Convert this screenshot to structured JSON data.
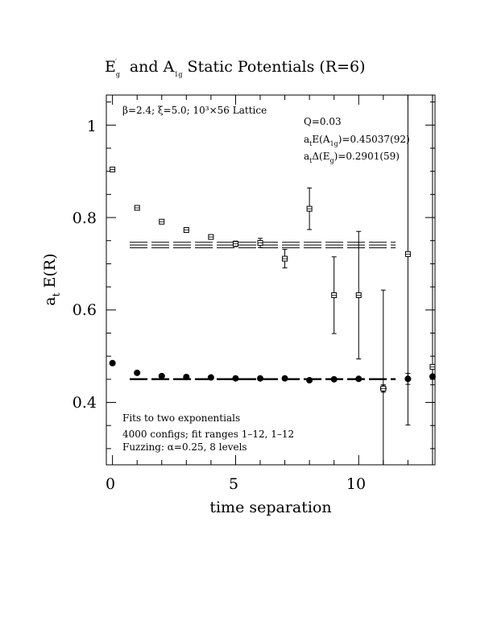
{
  "chart_data": {
    "type": "scatter",
    "title": {
      "main": "E",
      "main_sub": "g",
      "main_sup": "′",
      "and": "and A",
      "and_sub": "1g",
      "rest": "Static Potentials (R=6)"
    },
    "xlabel": "time separation",
    "ylabel": {
      "main": "a",
      "sub": "t",
      "rest": "E(R)"
    },
    "xlim": [
      -0.25,
      13.1
    ],
    "ylim": [
      0.265,
      1.065
    ],
    "xticks": [
      0,
      5,
      10
    ],
    "xtick_labels": [
      "0",
      "5",
      "10"
    ],
    "yticks": [
      0.4,
      0.6,
      0.8,
      1.0
    ],
    "ytick_labels": [
      "0.4",
      "0.6",
      "0.8",
      "1"
    ],
    "grid": false,
    "legend": "none",
    "lattice_label": "β=2.4; ξ=5.0; 10³×56 Lattice",
    "fit_info": {
      "q": "Q=0.03",
      "energy": {
        "pre": "a",
        "pre_sub": "t",
        "mid": "E(A",
        "mid_sub": "1g",
        "post": ")=0.45037(92)"
      },
      "delta": {
        "pre": "a",
        "pre_sub": "t",
        "mid": "Δ(E",
        "mid_sub": "g",
        "post": ")=0.2901(59)"
      }
    },
    "notes": [
      "Fits to two exponentials",
      "4000 configs; fit ranges 1–12, 1–12",
      "Fuzzing: α=0.25, 8 levels"
    ],
    "series": [
      {
        "name": "A1g",
        "marker": "filled-circle",
        "x": [
          0,
          1,
          2,
          3,
          4,
          5,
          6,
          7,
          8,
          9,
          10,
          11,
          12,
          13
        ],
        "y": [
          0.485,
          0.464,
          0.457,
          0.455,
          0.454,
          0.452,
          0.452,
          0.452,
          0.448,
          0.45,
          0.451,
          0.43,
          0.451,
          0.456
        ],
        "err": [
          0.003,
          0.002,
          0.002,
          0.002,
          0.002,
          0.002,
          0.002,
          0.003,
          0.003,
          0.004,
          0.004,
          0.008,
          0.012,
          0.018
        ]
      },
      {
        "name": "Eg'",
        "marker": "open-square",
        "x": [
          0,
          1,
          2,
          3,
          4,
          5,
          6,
          7,
          8,
          9,
          10,
          11,
          12,
          13
        ],
        "y": [
          0.904,
          0.821,
          0.791,
          0.773,
          0.758,
          0.743,
          0.745,
          0.711,
          0.819,
          0.632,
          0.632,
          0.43,
          0.721,
          0.477
        ],
        "err": [
          0.003,
          0.003,
          0.003,
          0.004,
          0.005,
          0.006,
          0.01,
          0.02,
          0.045,
          0.083,
          0.138,
          0.213,
          0.37,
          0.6
        ]
      }
    ],
    "fit_lines": [
      {
        "name": "A1g fit",
        "style": "dashed-band",
        "y": 0.45037,
        "err": 0.00092,
        "x_range": [
          0.7,
          11.5
        ]
      },
      {
        "name": "Eg' fit",
        "style": "dashed-band",
        "y": 0.7405,
        "err": 0.0059,
        "x_range": [
          0.7,
          11.5
        ]
      }
    ]
  }
}
